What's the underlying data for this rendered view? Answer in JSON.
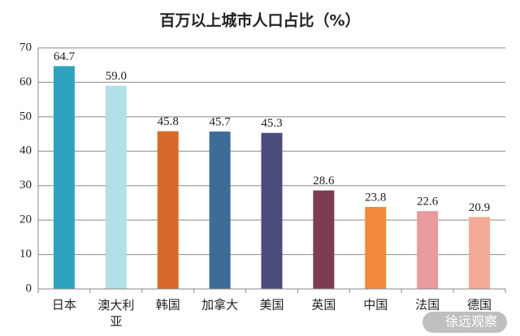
{
  "chart_data": {
    "type": "bar",
    "title": "百万以上城市人口占比（%）",
    "categories": [
      "日本",
      "澳大利亚",
      "韩国",
      "加拿大",
      "美国",
      "英国",
      "中国",
      "法国",
      "德国"
    ],
    "values": [
      64.7,
      59.0,
      45.8,
      45.7,
      45.3,
      28.6,
      23.8,
      22.6,
      20.9
    ],
    "value_labels": [
      "64.7",
      "59.0",
      "45.8",
      "45.7",
      "45.3",
      "28.6",
      "23.8",
      "22.6",
      "20.9"
    ],
    "colors": [
      "#2fa3bd",
      "#b1e0e9",
      "#d8692b",
      "#3f6b99",
      "#4c4d7d",
      "#7c3d52",
      "#f0893a",
      "#e89a9e",
      "#f2ac96"
    ],
    "ylim": [
      0,
      70
    ],
    "yticks": [
      0,
      10,
      20,
      30,
      40,
      50,
      60,
      70
    ],
    "grid": true,
    "watermark": "徐远观察"
  }
}
